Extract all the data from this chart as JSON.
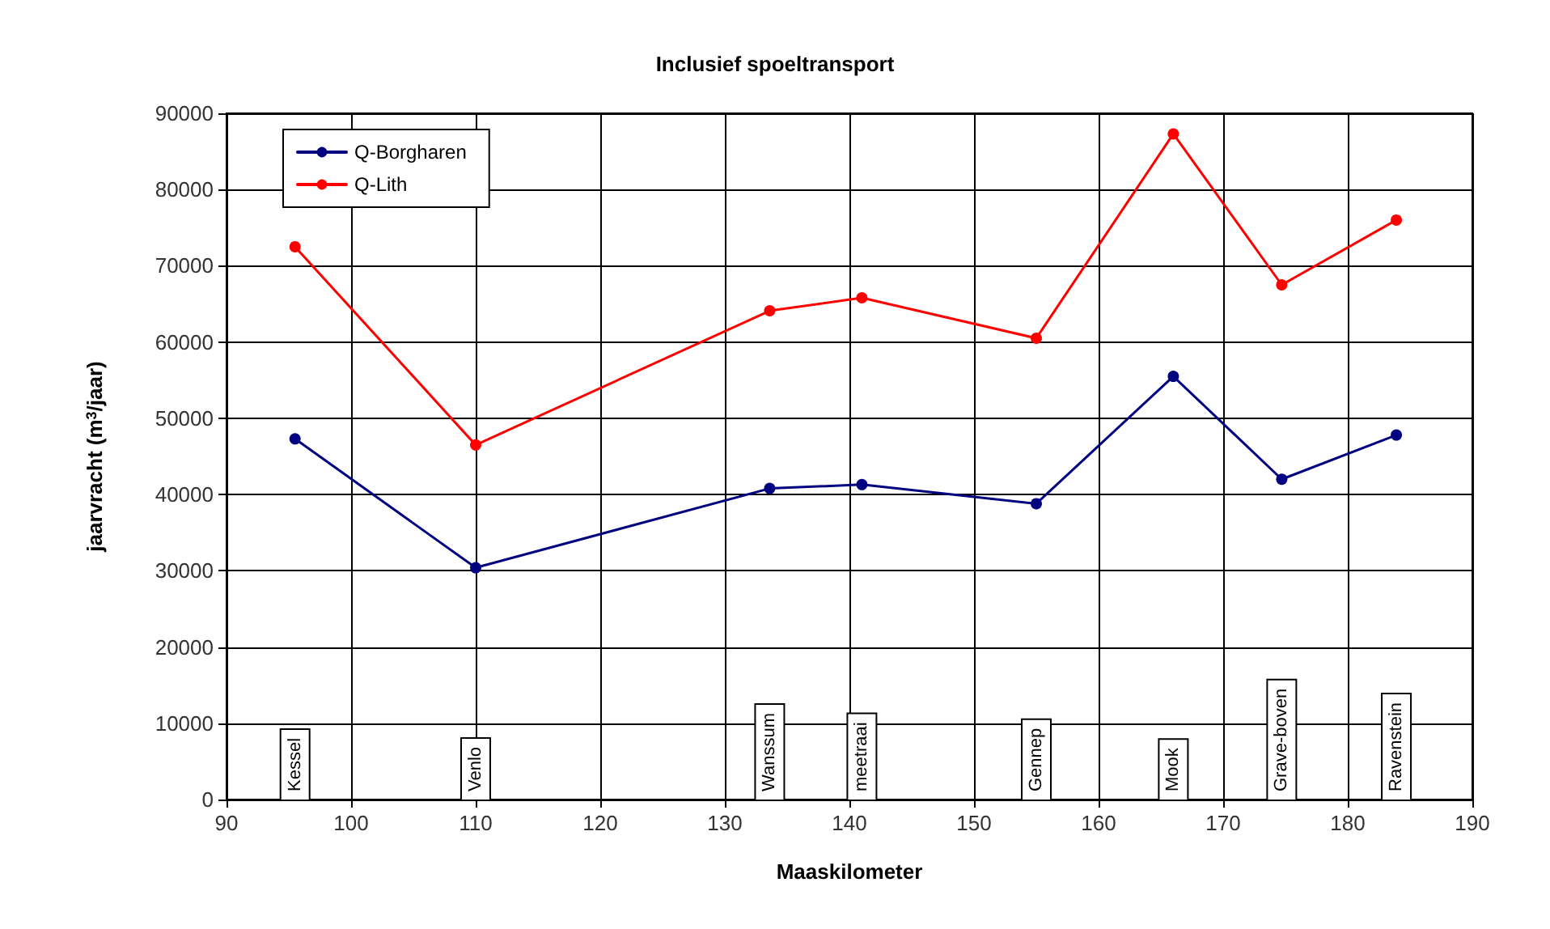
{
  "chart_data": {
    "type": "line",
    "title": "Inclusief spoeltransport",
    "xlabel": "Maaskilometer",
    "ylabel": "jaarvracht (m$^{3}$/jaar)",
    "x": [
      95.5,
      110,
      133.6,
      141,
      155,
      166,
      174.7,
      183.9
    ],
    "series": [
      {
        "name": "Q-Borgharen",
        "color": "#000080",
        "values": [
          47300,
          30400,
          40800,
          41300,
          38800,
          55500,
          42000,
          47800
        ]
      },
      {
        "name": "Q-Lith",
        "color": "#ff0000",
        "values": [
          72500,
          46500,
          64100,
          65800,
          60500,
          87300,
          67500,
          76000
        ]
      }
    ],
    "xlim": [
      90,
      190
    ],
    "xticks": [
      90,
      100,
      110,
      120,
      130,
      140,
      150,
      160,
      170,
      180,
      190
    ],
    "ylim": [
      0,
      90000
    ],
    "yticks": [
      0,
      10000,
      20000,
      30000,
      40000,
      50000,
      60000,
      70000,
      80000,
      90000
    ],
    "annotations": [
      "Kessel",
      "Venlo",
      "Wanssum",
      "meetraai",
      "Gennep",
      "Mook",
      "Grave-boven",
      "Ravenstein"
    ],
    "grid": true,
    "legend": "top left",
    "marker": "circle",
    "line_style": "solid"
  }
}
